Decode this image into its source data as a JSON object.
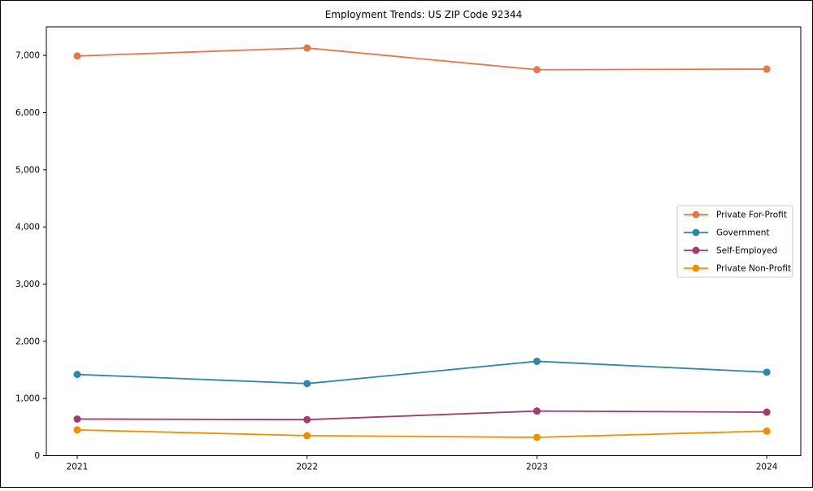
{
  "figure": {
    "background": "#ffffff",
    "border_color": "#000000",
    "plot_border_color": "#000000"
  },
  "chart_data": {
    "type": "line",
    "title": "Employment Trends: US ZIP Code 92344",
    "xlabel": "",
    "ylabel": "",
    "categories": [
      "2021",
      "2022",
      "2023",
      "2024"
    ],
    "series": [
      {
        "name": "Private For-Profit",
        "color": "#E8764B",
        "values": [
          6990,
          7130,
          6750,
          6760
        ]
      },
      {
        "name": "Government",
        "color": "#2E86AB",
        "values": [
          1420,
          1260,
          1650,
          1460
        ]
      },
      {
        "name": "Self-Employed",
        "color": "#A23B72",
        "values": [
          640,
          630,
          780,
          760
        ]
      },
      {
        "name": "Private Non-Profit",
        "color": "#F18F01",
        "values": [
          450,
          350,
          320,
          430
        ]
      }
    ],
    "ylim": [
      0,
      7500
    ],
    "y_ticks": [
      {
        "value": 0,
        "label": "0"
      },
      {
        "value": 1000,
        "label": "1,000"
      },
      {
        "value": 2000,
        "label": "2,000"
      },
      {
        "value": 3000,
        "label": "3,000"
      },
      {
        "value": 4000,
        "label": "4,000"
      },
      {
        "value": 5000,
        "label": "5,000"
      },
      {
        "value": 6000,
        "label": "6,000"
      },
      {
        "value": 7000,
        "label": "7,000"
      }
    ],
    "grid": false,
    "markers": true,
    "legend_position": "center right",
    "legend_border_color": "#cccccc",
    "legend_background": "#ffffff"
  }
}
